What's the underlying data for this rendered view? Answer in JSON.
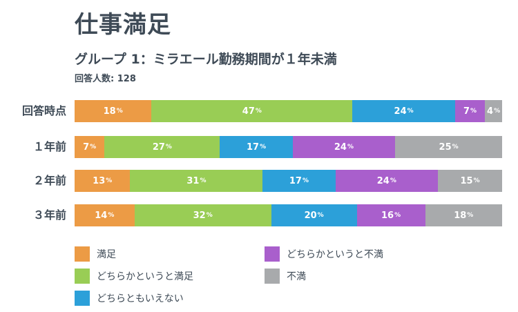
{
  "header": {
    "title": "仕事満足",
    "subtitle": "グループ 1：ミラエール勤務期間が１年未満",
    "respondents": "回答人数: 128"
  },
  "chart_data": {
    "type": "bar",
    "orientation": "horizontal",
    "stacked": true,
    "unit": "%",
    "categories": [
      "回答時点",
      "１年前",
      "２年前",
      "３年前"
    ],
    "series": [
      {
        "name": "満足",
        "color": "#ec9b45",
        "values": [
          18,
          7,
          13,
          14
        ]
      },
      {
        "name": "どちらかというと満足",
        "color": "#99cd55",
        "values": [
          47,
          27,
          31,
          32
        ]
      },
      {
        "name": "どちらともいえない",
        "color": "#2ca0d9",
        "values": [
          24,
          17,
          17,
          20
        ]
      },
      {
        "name": "どちらかというと不満",
        "color": "#a95fcc",
        "values": [
          7,
          24,
          24,
          16
        ]
      },
      {
        "name": "不満",
        "color": "#a8aaac",
        "values": [
          4,
          25,
          15,
          18
        ]
      }
    ]
  }
}
